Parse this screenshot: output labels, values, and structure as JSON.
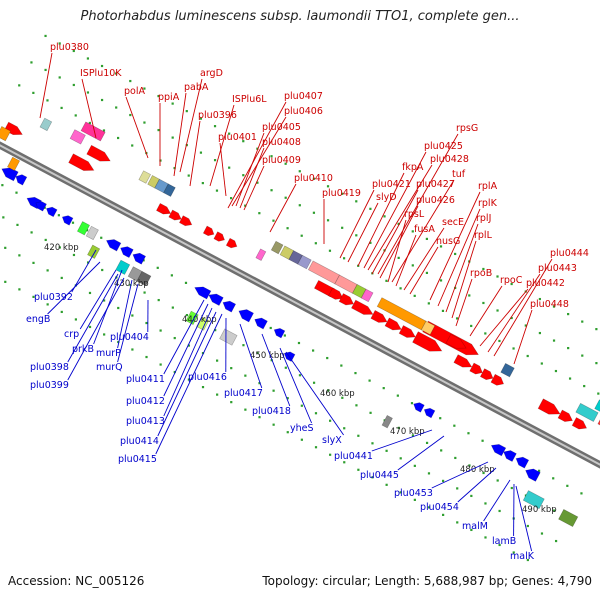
{
  "title": "Photorhabdus luminescens subsp. laumondii TTO1, complete gen...",
  "footer": {
    "accession": "Accession: NC_005126",
    "summary": "Topology: circular; Length: 5,688,987 bp; Genes: 4,790"
  },
  "colors": {
    "forward_label": "#cc0000",
    "reverse_label": "#0000cc",
    "backbone": "#888888",
    "forward_gene": "#ff0000",
    "reverse_gene": "#0000ff",
    "tick": "#2e9e2e"
  },
  "kbp_ticks": [
    "420 kbp",
    "430 kbp",
    "440 kbp",
    "450 kbp",
    "460 kbp",
    "470 kbp",
    "480 kbp",
    "490 kbp"
  ],
  "forward_labels": [
    "plu0380",
    "ISPlu10K",
    "polA",
    "ppiA",
    "pabA",
    "argD",
    "plu0396",
    "ISPlu6L",
    "plu0401",
    "plu0407",
    "plu0406",
    "plu0405",
    "plu0408",
    "plu0409",
    "plu0410",
    "plu0419",
    "plu0421",
    "slyD",
    "fkpA",
    "plu0425",
    "plu0428",
    "rpsG",
    "plu0427",
    "plu0426",
    "tuf",
    "rpsL",
    "fusA",
    "secE",
    "nusG",
    "rplA",
    "rplK",
    "rplJ",
    "rplL",
    "rpoB",
    "rpoC",
    "plu0442",
    "plu0443",
    "plu0444",
    "plu0448"
  ],
  "reverse_labels": [
    "plu0392",
    "engB",
    "crp",
    "prkB",
    "plu0398",
    "plu0399",
    "murP",
    "murQ",
    "plu0404",
    "plu0411",
    "plu0412",
    "plu0413",
    "plu0414",
    "plu0415",
    "plu0416",
    "plu0417",
    "plu0418",
    "yheS",
    "slyX",
    "plu0441",
    "plu0445",
    "plu0453",
    "plu0454",
    "malM",
    "lamB",
    "malK"
  ]
}
